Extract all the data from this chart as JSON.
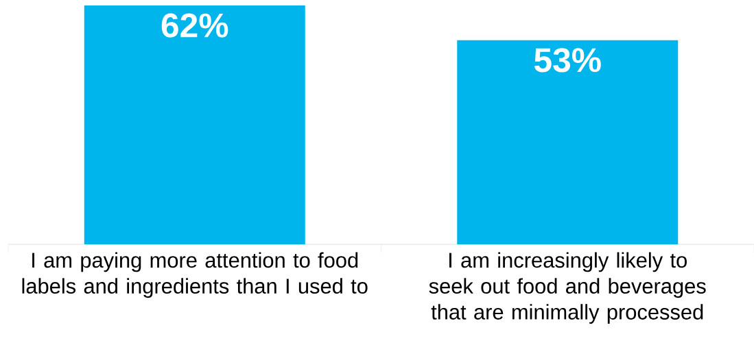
{
  "chart_data": {
    "type": "bar",
    "categories": [
      "I am paying more attention to food labels and ingredients than I used to",
      "I am increasingly likely to seek out food and beverages that are minimally processed"
    ],
    "values": [
      62,
      53
    ],
    "color": "#00b5ec",
    "value_labels": [
      "62%",
      "53%"
    ]
  }
}
